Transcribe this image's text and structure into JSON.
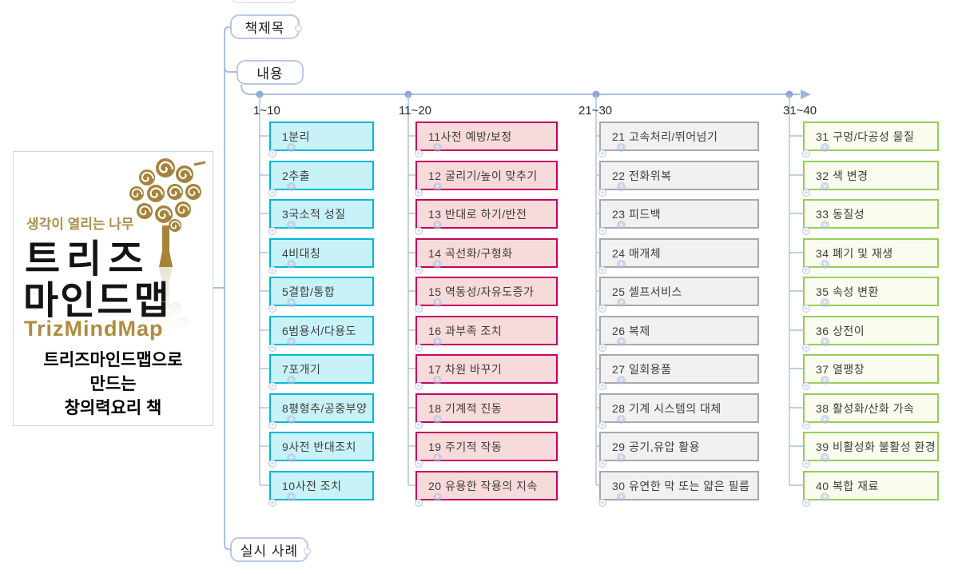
{
  "nodes": {
    "book_title": "책제목",
    "contents": "내용",
    "examples": "실시 사례"
  },
  "logo": {
    "tagline": "생각이 열리는 나무",
    "title_line1": "트리즈",
    "title_line2": "마인드맵",
    "brand": "TrizMindMap",
    "caption": "트리즈마인드맵으로\n만드는\n창의력요리 책"
  },
  "columns": [
    {
      "label": "1~10",
      "border_color": "#00b9d6",
      "fill_color": "#c9f2f8",
      "items": [
        "1분리",
        "2추출",
        "3국소적 성질",
        "4비대칭",
        "5결합/통합",
        "6범용서/다용도",
        "7포개기",
        "8평형추/공중부양",
        "9사전 반대조치",
        "10사전 조치"
      ]
    },
    {
      "label": "11~20",
      "border_color": "#c2055e",
      "fill_color": "#f7dada",
      "items": [
        "11사전 예방/보정",
        "12 굴리기/높이 맞추기",
        "13 반대로 하기/반전",
        "14 곡선화/구형화",
        "15 역동성/자유도증가",
        "16 과부족 조치",
        "17 차원 바꾸기",
        "18 기계적 진동",
        "19 주기적 작동",
        "20 유용한 작용의 지속"
      ]
    },
    {
      "label": "21~30",
      "border_color": "#a8a8a8",
      "fill_color": "#f1f1f1",
      "items": [
        "21 고속처리/뛰어넘기",
        "22 전화위복",
        "23 피드백",
        "24 매개체",
        "25 셀프서비스",
        "26 복제",
        "27 일회용품",
        "28 기계 시스템의 대체",
        "29 공기,유압 활용",
        "30 유연한 막 또는 얇은 필름"
      ]
    },
    {
      "label": "31~40",
      "border_color": "#95cf57",
      "fill_color": "#f9fcee",
      "items": [
        "31 구멍/다공성 물질",
        "32 색 변경",
        "33 동질성",
        "34 폐기 및 재생",
        "35 속성 변환",
        "36 상전이",
        "37 열팽창",
        "38 활성화/산화 가속",
        "39 비활성화 불활성 환경",
        "40 복합 재료"
      ]
    }
  ],
  "colors": {
    "connector": "#aabfe0",
    "branch_dot": "#8da6d8",
    "arrow": "#9db4dc",
    "node_border": "#b9c9e6",
    "logo_gold": "#a5833a"
  }
}
